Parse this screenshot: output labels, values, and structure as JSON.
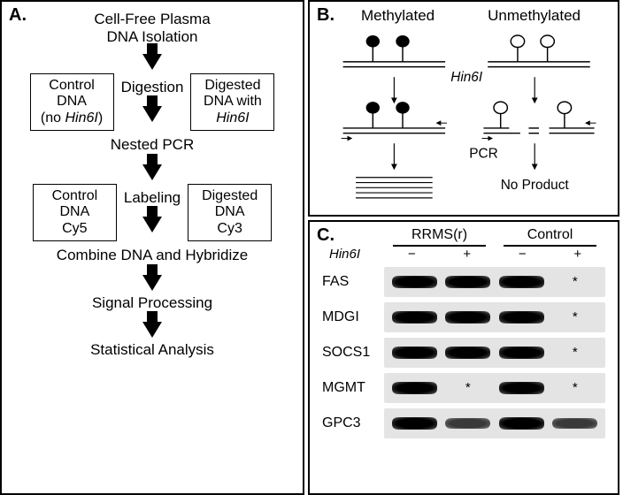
{
  "panelA": {
    "label": "A.",
    "step1": "Cell-Free Plasma\nDNA Isolation",
    "digestion": "Digestion",
    "control_box": "Control\nDNA\n(no Hin6I)",
    "digested_box": "Digested\nDNA with\nHin6I",
    "nested_pcr": "Nested PCR",
    "labeling": "Labeling",
    "control_cy5": "Control\nDNA\nCy5",
    "digested_cy3": "Digested\nDNA\nCy3",
    "combine": "Combine DNA and Hybridize",
    "signal": "Signal Processing",
    "stats": "Statistical Analysis"
  },
  "panelB": {
    "label": "B.",
    "methylated": "Methylated",
    "unmethylated": "Unmethylated",
    "hin6i": "Hin6I",
    "pcr": "PCR",
    "no_product": "No Product",
    "colors": {
      "stroke": "#000000",
      "fill_methyl": "#000000",
      "fill_unmethyl": "#ffffff",
      "line_w": 1.5
    }
  },
  "panelC": {
    "label": "C.",
    "group1": "RRMS(r)",
    "group2": "Control",
    "hin6i": "Hin6I",
    "minus": "−",
    "plus": "+",
    "genes": [
      {
        "name": "FAS",
        "bands": [
          true,
          true,
          true,
          false
        ],
        "stars": [
          false,
          false,
          false,
          true
        ]
      },
      {
        "name": "MDGI",
        "bands": [
          true,
          true,
          true,
          false
        ],
        "stars": [
          false,
          false,
          false,
          true
        ]
      },
      {
        "name": "SOCS1",
        "bands": [
          true,
          true,
          true,
          false
        ],
        "stars": [
          false,
          false,
          false,
          true
        ]
      },
      {
        "name": "MGMT",
        "bands": [
          true,
          false,
          true,
          false
        ],
        "stars": [
          false,
          true,
          false,
          true
        ]
      },
      {
        "name": "GPC3",
        "bands": [
          true,
          "faint",
          true,
          "faint"
        ],
        "stars": [
          false,
          false,
          false,
          false
        ]
      }
    ],
    "colors": {
      "lane_bg": "#e4e4e4",
      "band": "#000000"
    }
  }
}
